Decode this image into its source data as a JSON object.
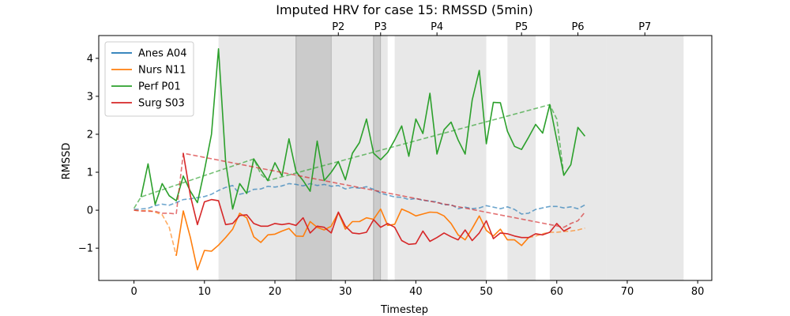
{
  "chart_data": {
    "type": "line",
    "title": "Imputed HRV for case 15: RMSSD (5min)",
    "xlabel": "Timestep",
    "ylabel": "RMSSD",
    "xlim": [
      -5,
      82
    ],
    "ylim": [
      -1.85,
      4.6
    ],
    "xticks": [
      0,
      10,
      20,
      30,
      40,
      50,
      60,
      70,
      80
    ],
    "yticks": [
      -1,
      0,
      1,
      2,
      3,
      4
    ],
    "legend_position": "upper-left",
    "grid": false,
    "phase_regions": [
      {
        "x0": 12,
        "x1": 23,
        "shade": "light"
      },
      {
        "x0": 23,
        "x1": 28,
        "shade": "dark"
      },
      {
        "x0": 28,
        "x1": 34,
        "shade": "light"
      },
      {
        "x0": 34,
        "x1": 35,
        "shade": "dark"
      },
      {
        "x0": 35,
        "x1": 36,
        "shade": "light"
      },
      {
        "x0": 37,
        "x1": 50,
        "shade": "light"
      },
      {
        "x0": 53,
        "x1": 57,
        "shade": "light"
      },
      {
        "x0": 59,
        "x1": 67,
        "shade": "light"
      },
      {
        "x0": 67,
        "x1": 78,
        "shade": "light"
      }
    ],
    "phase_labels": [
      {
        "label": "P2",
        "x": 29
      },
      {
        "label": "P3",
        "x": 35
      },
      {
        "label": "P4",
        "x": 43
      },
      {
        "label": "P5",
        "x": 55
      },
      {
        "label": "P6",
        "x": 63
      },
      {
        "label": "P7",
        "x": 72.5
      }
    ],
    "series": [
      {
        "name": "Anes A04",
        "color": "#1f77b4",
        "imputed": [
          [
            0,
            0.02
          ],
          [
            1,
            0.03
          ],
          [
            2,
            0.05
          ],
          [
            3,
            0.12
          ],
          [
            4,
            0.16
          ],
          [
            5,
            0.13
          ],
          [
            6,
            0.2
          ],
          [
            7,
            0.28
          ],
          [
            8,
            0.3
          ],
          [
            9,
            0.33
          ],
          [
            10,
            0.36
          ],
          [
            11,
            0.42
          ],
          [
            12,
            0.52
          ],
          [
            13,
            0.6
          ],
          [
            14,
            0.65
          ],
          [
            15,
            0.42
          ],
          [
            16,
            0.46
          ],
          [
            17,
            0.55
          ],
          [
            18,
            0.56
          ],
          [
            19,
            0.63
          ],
          [
            20,
            0.61
          ],
          [
            21,
            0.64
          ],
          [
            22,
            0.7
          ],
          [
            23,
            0.68
          ],
          [
            24,
            0.64
          ],
          [
            25,
            0.7
          ],
          [
            26,
            0.65
          ],
          [
            27,
            0.68
          ],
          [
            28,
            0.63
          ],
          [
            29,
            0.65
          ],
          [
            30,
            0.56
          ],
          [
            31,
            0.6
          ],
          [
            32,
            0.58
          ],
          [
            33,
            0.62
          ],
          [
            34,
            0.55
          ],
          [
            35,
            0.45
          ],
          [
            36,
            0.4
          ],
          [
            37,
            0.35
          ],
          [
            38,
            0.34
          ],
          [
            39,
            0.28
          ],
          [
            40,
            0.31
          ],
          [
            41,
            0.26
          ],
          [
            42,
            0.24
          ],
          [
            43,
            0.22
          ],
          [
            44,
            0.14
          ],
          [
            45,
            0.15
          ],
          [
            46,
            0.04
          ],
          [
            47,
            0.08
          ],
          [
            48,
            0.04
          ],
          [
            49,
            0.06
          ],
          [
            50,
            0.12
          ],
          [
            51,
            0.08
          ],
          [
            52,
            0.04
          ],
          [
            53,
            0.09
          ],
          [
            54,
            0.02
          ],
          [
            55,
            -0.1
          ],
          [
            56,
            -0.08
          ],
          [
            57,
            0.02
          ],
          [
            58,
            0.06
          ],
          [
            59,
            0.1
          ],
          [
            60,
            0.1
          ],
          [
            61,
            0.06
          ],
          [
            62,
            0.09
          ],
          [
            63,
            0.04
          ],
          [
            64,
            0.14
          ]
        ],
        "observed": []
      },
      {
        "name": "Nurs N11",
        "color": "#ff7f0e",
        "imputed": [
          [
            0,
            0.0
          ],
          [
            1,
            -0.02
          ],
          [
            2,
            0.0
          ],
          [
            3,
            -0.05
          ],
          [
            4,
            -0.12
          ],
          [
            5,
            -0.45
          ],
          [
            6,
            -1.2
          ],
          [
            7,
            null
          ],
          [
            56,
            -0.72
          ],
          [
            57,
            -0.68
          ],
          [
            58,
            -0.62
          ],
          [
            59,
            -0.58
          ],
          [
            60,
            -0.58
          ],
          [
            61,
            -0.56
          ],
          [
            62,
            -0.55
          ],
          [
            63,
            -0.52
          ],
          [
            64,
            -0.47
          ]
        ],
        "observed": [
          [
            6,
            -1.2
          ],
          [
            7,
            -0.02
          ],
          [
            8,
            -0.72
          ],
          [
            9,
            -1.57
          ],
          [
            10,
            -1.06
          ],
          [
            11,
            -1.08
          ],
          [
            12,
            -0.92
          ],
          [
            13,
            -0.72
          ],
          [
            14,
            -0.5
          ],
          [
            15,
            -0.08
          ],
          [
            16,
            -0.2
          ],
          [
            17,
            -0.7
          ],
          [
            18,
            -0.85
          ],
          [
            19,
            -0.65
          ],
          [
            20,
            -0.63
          ],
          [
            21,
            -0.55
          ],
          [
            22,
            -0.48
          ],
          [
            23,
            -0.68
          ],
          [
            24,
            -0.69
          ],
          [
            25,
            -0.3
          ],
          [
            26,
            -0.45
          ],
          [
            27,
            -0.52
          ],
          [
            28,
            -0.42
          ],
          [
            29,
            -0.06
          ],
          [
            30,
            -0.5
          ],
          [
            31,
            -0.3
          ],
          [
            32,
            -0.3
          ],
          [
            33,
            -0.2
          ],
          [
            34,
            -0.24
          ],
          [
            35,
            0.03
          ],
          [
            36,
            -0.4
          ],
          [
            37,
            -0.37
          ],
          [
            38,
            0.03
          ],
          [
            39,
            -0.05
          ],
          [
            40,
            -0.15
          ],
          [
            41,
            -0.1
          ],
          [
            42,
            -0.05
          ],
          [
            43,
            -0.06
          ],
          [
            44,
            -0.15
          ],
          [
            45,
            -0.35
          ],
          [
            46,
            -0.65
          ],
          [
            47,
            -0.78
          ],
          [
            48,
            -0.48
          ],
          [
            49,
            -0.15
          ],
          [
            50,
            -0.53
          ],
          [
            51,
            -0.68
          ],
          [
            52,
            -0.5
          ],
          [
            53,
            -0.78
          ],
          [
            54,
            -0.78
          ],
          [
            55,
            -0.93
          ],
          [
            56,
            -0.72
          ]
        ]
      },
      {
        "name": "Perf P01",
        "color": "#2ca02c",
        "imputed": [
          [
            0,
            0.05
          ],
          [
            1,
            0.35
          ],
          [
            17,
            1.35
          ],
          [
            18,
            0.95
          ],
          [
            19,
            0.78
          ],
          [
            59,
            2.78
          ],
          [
            60,
            2.4
          ],
          [
            61,
            0.92
          ]
        ],
        "observed": [
          [
            1,
            0.35
          ],
          [
            2,
            1.22
          ],
          [
            3,
            0.15
          ],
          [
            4,
            0.7
          ],
          [
            5,
            0.38
          ],
          [
            6,
            0.25
          ],
          [
            7,
            0.9
          ],
          [
            8,
            0.5
          ],
          [
            9,
            0.2
          ],
          [
            10,
            1.05
          ],
          [
            11,
            2.0
          ],
          [
            12,
            4.25
          ],
          [
            13,
            1.28
          ],
          [
            14,
            0.03
          ],
          [
            15,
            0.7
          ],
          [
            16,
            0.44
          ],
          [
            17,
            1.35
          ],
          [
            19,
            0.78
          ],
          [
            20,
            1.25
          ],
          [
            21,
            0.9
          ],
          [
            22,
            1.88
          ],
          [
            23,
            1.02
          ],
          [
            24,
            0.78
          ],
          [
            25,
            0.5
          ],
          [
            26,
            1.82
          ],
          [
            27,
            0.78
          ],
          [
            28,
            1.0
          ],
          [
            29,
            1.28
          ],
          [
            30,
            0.8
          ],
          [
            31,
            1.5
          ],
          [
            32,
            1.78
          ],
          [
            33,
            2.4
          ],
          [
            34,
            1.5
          ],
          [
            35,
            1.33
          ],
          [
            36,
            1.52
          ],
          [
            37,
            1.85
          ],
          [
            38,
            2.22
          ],
          [
            39,
            1.42
          ],
          [
            40,
            2.4
          ],
          [
            41,
            2.02
          ],
          [
            42,
            3.08
          ],
          [
            43,
            1.48
          ],
          [
            44,
            2.12
          ],
          [
            45,
            2.32
          ],
          [
            46,
            1.85
          ],
          [
            47,
            1.48
          ],
          [
            48,
            2.9
          ],
          [
            49,
            3.68
          ],
          [
            50,
            1.75
          ],
          [
            51,
            2.84
          ],
          [
            52,
            2.83
          ],
          [
            53,
            2.08
          ],
          [
            54,
            1.68
          ],
          [
            55,
            1.6
          ],
          [
            56,
            1.92
          ],
          [
            57,
            2.26
          ],
          [
            58,
            2.03
          ],
          [
            59,
            2.78
          ],
          [
            61,
            0.92
          ],
          [
            62,
            1.2
          ],
          [
            63,
            2.18
          ],
          [
            64,
            1.95
          ]
        ]
      },
      {
        "name": "Surg S03",
        "color": "#d62728",
        "imputed": [
          [
            0,
            0.0
          ],
          [
            1,
            -0.02
          ],
          [
            2,
            -0.03
          ],
          [
            3,
            -0.03
          ],
          [
            4,
            -0.08
          ],
          [
            5,
            -0.08
          ],
          [
            6,
            -0.1
          ],
          [
            7,
            1.5
          ],
          [
            61,
            -0.45
          ],
          [
            62,
            -0.35
          ],
          [
            63,
            -0.28
          ],
          [
            64,
            -0.05
          ]
        ],
        "observed": [
          [
            7,
            1.5
          ],
          [
            8,
            0.38
          ],
          [
            9,
            -0.38
          ],
          [
            10,
            0.22
          ],
          [
            11,
            0.28
          ],
          [
            12,
            0.25
          ],
          [
            13,
            -0.38
          ],
          [
            14,
            -0.35
          ],
          [
            15,
            -0.14
          ],
          [
            16,
            -0.12
          ],
          [
            17,
            -0.35
          ],
          [
            18,
            -0.42
          ],
          [
            19,
            -0.42
          ],
          [
            20,
            -0.35
          ],
          [
            21,
            -0.38
          ],
          [
            22,
            -0.35
          ],
          [
            23,
            -0.4
          ],
          [
            24,
            -0.2
          ],
          [
            25,
            -0.6
          ],
          [
            26,
            -0.42
          ],
          [
            27,
            -0.45
          ],
          [
            28,
            -0.6
          ],
          [
            29,
            -0.05
          ],
          [
            30,
            -0.42
          ],
          [
            31,
            -0.6
          ],
          [
            32,
            -0.62
          ],
          [
            33,
            -0.58
          ],
          [
            34,
            -0.25
          ],
          [
            35,
            -0.45
          ],
          [
            36,
            -0.35
          ],
          [
            37,
            -0.45
          ],
          [
            38,
            -0.8
          ],
          [
            39,
            -0.9
          ],
          [
            40,
            -0.88
          ],
          [
            41,
            -0.55
          ],
          [
            42,
            -0.82
          ],
          [
            43,
            -0.72
          ],
          [
            44,
            -0.6
          ],
          [
            45,
            -0.7
          ],
          [
            46,
            -0.78
          ],
          [
            47,
            -0.52
          ],
          [
            48,
            -0.8
          ],
          [
            49,
            -0.6
          ],
          [
            50,
            -0.28
          ],
          [
            51,
            -0.75
          ],
          [
            52,
            -0.6
          ],
          [
            53,
            -0.62
          ],
          [
            54,
            -0.68
          ],
          [
            55,
            -0.72
          ],
          [
            56,
            -0.72
          ],
          [
            57,
            -0.62
          ],
          [
            58,
            -0.65
          ],
          [
            59,
            -0.58
          ],
          [
            60,
            -0.35
          ],
          [
            61,
            -0.55
          ],
          [
            62,
            -0.45
          ]
        ]
      }
    ]
  }
}
